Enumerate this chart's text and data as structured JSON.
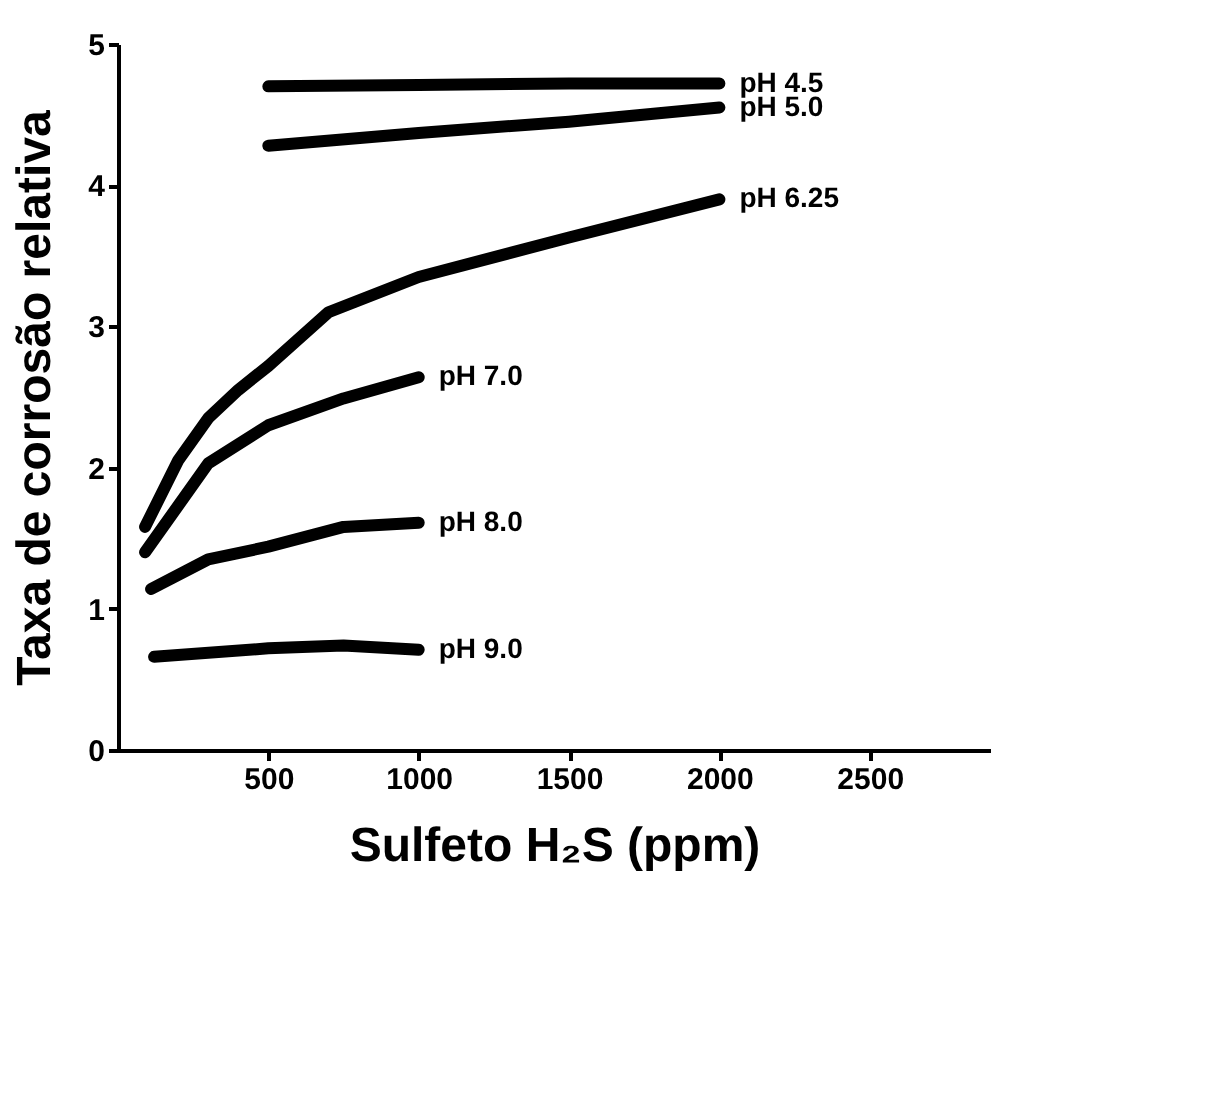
{
  "chart_data": {
    "type": "line",
    "xlabel": "Sulfeto H₂S (ppm)",
    "ylabel": "Taxa de corrosão relativa",
    "xlim": [
      0,
      2900
    ],
    "ylim": [
      0,
      5
    ],
    "xticks": [
      500,
      1000,
      1500,
      2000,
      2500
    ],
    "yticks": [
      0,
      1,
      2,
      3,
      4,
      5
    ],
    "grid": false,
    "legend": false,
    "marker": "none",
    "line_style": "solid",
    "series": [
      {
        "name": "pH 4.5",
        "color": "#000000",
        "x": [
          500,
          1000,
          1500,
          2000
        ],
        "values": [
          4.7,
          4.71,
          4.72,
          4.72
        ]
      },
      {
        "name": "pH 5.0",
        "color": "#000000",
        "x": [
          500,
          1000,
          1500,
          2000
        ],
        "values": [
          4.28,
          4.37,
          4.45,
          4.55
        ]
      },
      {
        "name": "pH 6.25",
        "color": "#000000",
        "x": [
          90,
          200,
          300,
          400,
          500,
          700,
          1000,
          1500,
          2000
        ],
        "values": [
          1.58,
          2.05,
          2.35,
          2.55,
          2.72,
          3.1,
          3.35,
          3.63,
          3.9
        ]
      },
      {
        "name": "pH 7.0",
        "color": "#000000",
        "x": [
          90,
          300,
          500,
          750,
          1000
        ],
        "values": [
          1.4,
          2.03,
          2.3,
          2.49,
          2.64
        ]
      },
      {
        "name": "pH 8.0",
        "color": "#000000",
        "x": [
          110,
          300,
          500,
          750,
          1000
        ],
        "values": [
          1.14,
          1.35,
          1.44,
          1.58,
          1.61
        ]
      },
      {
        "name": "pH 9.0",
        "color": "#000000",
        "x": [
          120,
          500,
          750,
          1000
        ],
        "values": [
          0.66,
          0.72,
          0.74,
          0.71
        ]
      }
    ]
  }
}
